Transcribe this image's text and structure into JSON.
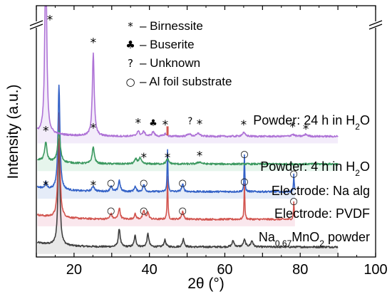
{
  "chart_data": {
    "type": "line",
    "xlabel": "2θ (°)",
    "ylabel": "Intensity (a.u.)",
    "xlim": [
      10,
      100
    ],
    "xticks": [
      20,
      40,
      60,
      80,
      100
    ],
    "y_broken_axis": true,
    "legend": {
      "placement": "top-center",
      "items": [
        {
          "symbol": "*",
          "label": "– Birnessite"
        },
        {
          "symbol": "♣",
          "label": "– Buserite"
        },
        {
          "symbol": "?",
          "label": "– Unknown"
        },
        {
          "symbol": "○",
          "label": "– Al foil substrate"
        }
      ]
    },
    "series": [
      {
        "name": "Na0.67MnO2 powder",
        "label": {
          "pre": "Na",
          "sub1": "0.67",
          "mid": "MnO",
          "sub2": "2",
          "post": " powder"
        },
        "color": "#404040",
        "shade": "#d6d6d6",
        "baseline": 2,
        "x_end": 90,
        "peaks": [
          [
            16.0,
            21,
            0.3
          ],
          [
            32.0,
            3.6,
            0.3
          ],
          [
            36.2,
            2.2,
            0.3
          ],
          [
            39.6,
            2.6,
            0.3
          ],
          [
            44.1,
            1.4,
            0.3
          ],
          [
            49.0,
            1.6,
            0.3
          ],
          [
            62.2,
            1.2,
            0.35
          ],
          [
            65.2,
            1.4,
            0.35
          ],
          [
            67.2,
            1.2,
            0.35
          ]
        ]
      },
      {
        "name": "Electrode: PVDF",
        "label": {
          "pre": "Electrode: PVDF"
        },
        "color": "#d2554f",
        "shade": "#f5d3df",
        "baseline": 7.5,
        "x_end": 78.6,
        "peaks": [
          [
            16.0,
            21,
            0.3
          ],
          [
            29.8,
            1.1,
            0.3
          ],
          [
            32.0,
            2.2,
            0.3
          ],
          [
            36.2,
            1.0,
            0.3
          ],
          [
            38.5,
            1.7,
            0.3
          ],
          [
            39.6,
            1.3,
            0.3
          ],
          [
            44.8,
            8.5,
            0.12
          ],
          [
            48.8,
            1.6,
            0.3
          ],
          [
            65.2,
            7.2,
            0.12
          ],
          [
            78.3,
            3.4,
            0.12
          ]
        ]
      },
      {
        "name": "Electrode: Na alg",
        "label": {
          "pre": "Electrode: Na alg"
        },
        "color": "#3462c7",
        "shade": "#cfdcf2",
        "baseline": 13,
        "x_end": 78.6,
        "peaks": [
          [
            12.5,
            1.2,
            0.3
          ],
          [
            16.0,
            21,
            0.3
          ],
          [
            25.1,
            1.0,
            0.4
          ],
          [
            29.8,
            1.1,
            0.3
          ],
          [
            32.0,
            2.2,
            0.3
          ],
          [
            36.2,
            1.0,
            0.3
          ],
          [
            38.5,
            1.4,
            0.3
          ],
          [
            44.8,
            8.5,
            0.12
          ],
          [
            48.8,
            1.5,
            0.3
          ],
          [
            65.2,
            7.2,
            0.12
          ],
          [
            78.3,
            3.4,
            0.12
          ]
        ]
      },
      {
        "name": "Powder: 4 h in H2O",
        "label": {
          "pre": "Powder: 4 h in H",
          "sub1": "2",
          "mid": "O"
        },
        "color": "#3c9960",
        "shade": "#d2ecdd",
        "baseline": 18.5,
        "x_end": 90,
        "peaks": [
          [
            12.5,
            3.8,
            0.35
          ],
          [
            16.0,
            6.3,
            0.4
          ],
          [
            25.1,
            3.3,
            0.35
          ],
          [
            36.4,
            0.9,
            0.4
          ],
          [
            37.5,
            1.1,
            0.4
          ],
          [
            44.8,
            1.0,
            0.4
          ],
          [
            53.3,
            0.4,
            0.6
          ]
        ]
      },
      {
        "name": "Powder: 24 h in H2O",
        "label": {
          "pre": "Powder: 24 h in H",
          "sub1": "2",
          "mid": "O"
        },
        "color": "#ae72d6",
        "shade": "#eadcf6",
        "baseline": 24,
        "x_end": 90,
        "peaks": [
          [
            12.5,
            40,
            0.28
          ],
          [
            25.1,
            16.5,
            0.3
          ],
          [
            37.0,
            1.0,
            0.4
          ],
          [
            38.5,
            0.9,
            0.4
          ],
          [
            41.0,
            0.9,
            0.4
          ],
          [
            44.2,
            0.5,
            0.4
          ],
          [
            50.5,
            0.5,
            0.5
          ],
          [
            53.0,
            0.6,
            0.5
          ],
          [
            65.0,
            0.7,
            0.5
          ],
          [
            78.0,
            0.4,
            0.5
          ],
          [
            81.5,
            0.4,
            0.5
          ]
        ]
      }
    ],
    "red_step": {
      "x": 44.8,
      "y_from": 24.2,
      "y_to": 26.0,
      "color": "#d2554f"
    },
    "annotations": [
      {
        "text": "*",
        "x": 13.6,
        "y": 47.5
      },
      {
        "text": "*",
        "x": 25.1,
        "y": 43.0
      },
      {
        "text": "*",
        "x": 12.5,
        "y": 25.4
      },
      {
        "text": "*",
        "x": 25.1,
        "y": 26.0
      },
      {
        "text": "*",
        "x": 37.0,
        "y": 27.0
      },
      {
        "text": "♣",
        "x": 41.0,
        "y": 26.6
      },
      {
        "text": "*",
        "x": 44.2,
        "y": 26.6
      },
      {
        "text": "?",
        "x": 50.8,
        "y": 27.0
      },
      {
        "text": "*",
        "x": 53.3,
        "y": 26.8
      },
      {
        "text": "*",
        "x": 65.0,
        "y": 26.6
      },
      {
        "text": "*",
        "x": 78.0,
        "y": 26.2
      },
      {
        "text": "*",
        "x": 81.5,
        "y": 25.8
      },
      {
        "text": "*",
        "x": 38.5,
        "y": 20.1
      },
      {
        "text": "*",
        "x": 44.8,
        "y": 20.1
      },
      {
        "text": "*",
        "x": 53.3,
        "y": 20.5
      },
      {
        "text": "*",
        "x": 12.5,
        "y": 14.6
      },
      {
        "text": "*",
        "x": 25.1,
        "y": 14.6
      },
      {
        "text": "○",
        "x": 29.8,
        "y": 14.7
      },
      {
        "text": "○",
        "x": 38.5,
        "y": 14.7
      },
      {
        "text": "○",
        "x": 48.8,
        "y": 14.7
      },
      {
        "text": "○",
        "x": 65.2,
        "y": 20.5
      },
      {
        "text": "○",
        "x": 78.3,
        "y": 16.6
      },
      {
        "text": "○",
        "x": 29.8,
        "y": 9.2
      },
      {
        "text": "○",
        "x": 38.5,
        "y": 9.2
      },
      {
        "text": "○",
        "x": 48.8,
        "y": 9.2
      },
      {
        "text": "○",
        "x": 65.2,
        "y": 15.0
      },
      {
        "text": "○",
        "x": 78.3,
        "y": 11.1
      }
    ]
  }
}
